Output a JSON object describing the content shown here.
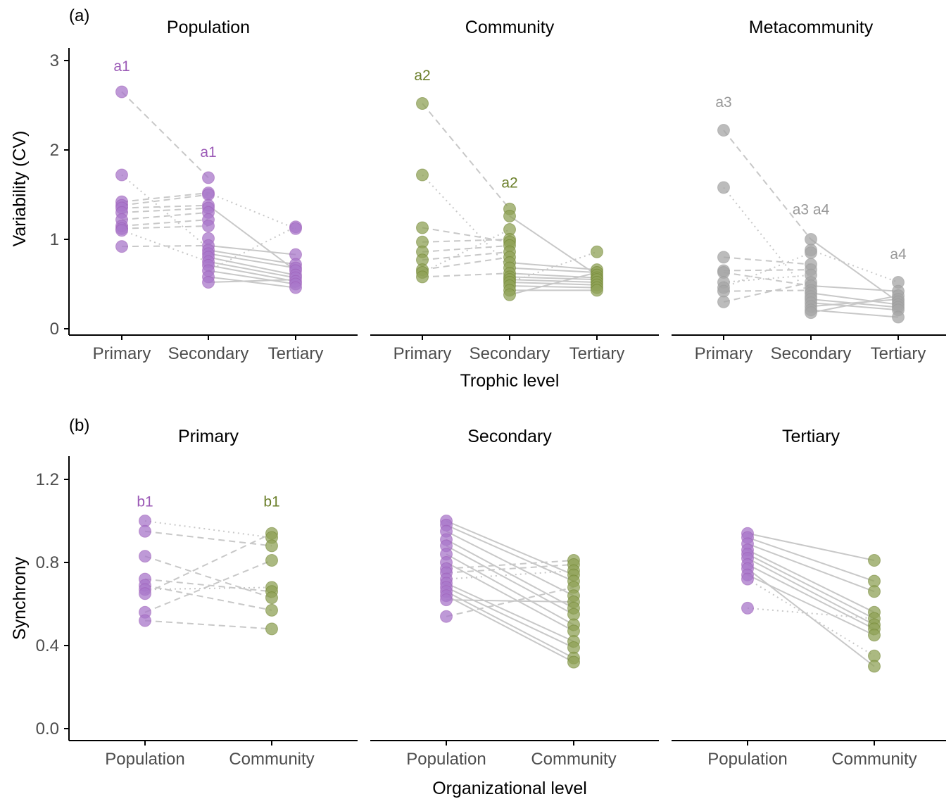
{
  "colors": {
    "population": "#9b59b6",
    "community": "#6b7f2a",
    "metacommunity": "#999999",
    "population_fill": "#a877c9",
    "community_fill": "#8fa157",
    "metacommunity_fill": "#a6a6a6",
    "line": "#c8c8c8",
    "axis": "#000000",
    "tick_text": "#4d4d4d"
  },
  "chart_data": [
    {
      "panel": "(a)",
      "type": "scatter",
      "ylabel": "Variability (CV)",
      "xlabel": "Trophic level",
      "ylim": [
        0,
        3.1
      ],
      "yticks": [
        0,
        1,
        2,
        3
      ],
      "categories": [
        "Primary",
        "Secondary",
        "Tertiary"
      ],
      "facets": [
        {
          "title": "Population",
          "color_key": "population",
          "points": [
            [
              2.65,
              1.72,
              1.42,
              1.38,
              1.35,
              1.3,
              1.22,
              1.15,
              1.12,
              1.1,
              0.92
            ],
            [
              1.69,
              1.52,
              1.5,
              1.38,
              1.35,
              1.3,
              1.22,
              1.15,
              1.01,
              0.93,
              0.88,
              0.84,
              0.8,
              0.75,
              0.71,
              0.65,
              0.58,
              0.52
            ],
            [
              1.14,
              1.12,
              0.83,
              0.72,
              0.68,
              0.65,
              0.6,
              0.57,
              0.53,
              0.5,
              0.46
            ]
          ],
          "lines": [
            [
              0,
              2.65,
              1,
              1.69,
              "dashed"
            ],
            [
              0,
              1.72,
              1,
              0.9,
              "dotted"
            ],
            [
              0,
              1.42,
              1,
              1.52,
              "dashed"
            ],
            [
              0,
              1.38,
              1,
              1.5,
              "dashed"
            ],
            [
              0,
              1.35,
              1,
              1.38,
              "dashed"
            ],
            [
              0,
              1.3,
              1,
              1.35,
              "dashed"
            ],
            [
              0,
              1.22,
              1,
              1.3,
              "dashed"
            ],
            [
              0,
              1.15,
              1,
              1.22,
              "dashed"
            ],
            [
              0,
              1.12,
              1,
              1.15,
              "dashed"
            ],
            [
              0,
              1.1,
              1,
              0.75,
              "dotted"
            ],
            [
              0,
              0.92,
              1,
              0.93,
              "dashed"
            ],
            [
              1,
              1.52,
              2,
              1.12,
              "dotted"
            ],
            [
              1,
              1.38,
              2,
              0.65,
              "solid"
            ],
            [
              1,
              0.93,
              2,
              0.83,
              "solid"
            ],
            [
              1,
              0.88,
              2,
              0.72,
              "solid"
            ],
            [
              1,
              0.84,
              2,
              0.68,
              "solid"
            ],
            [
              1,
              0.8,
              2,
              0.6,
              "solid"
            ],
            [
              1,
              0.75,
              2,
              0.57,
              "solid"
            ],
            [
              1,
              0.71,
              2,
              0.53,
              "solid"
            ],
            [
              1,
              0.65,
              2,
              0.5,
              "solid"
            ],
            [
              1,
              0.58,
              2,
              0.46,
              "solid"
            ],
            [
              1,
              0.52,
              2,
              0.55,
              "solid"
            ],
            [
              1,
              0.65,
              2,
              1.14,
              "dotted"
            ]
          ],
          "annotations": [
            {
              "text": "a1",
              "x": 0,
              "y": 2.88
            },
            {
              "text": "a1",
              "x": 1,
              "y": 1.92
            }
          ]
        },
        {
          "title": "Community",
          "color_key": "community",
          "points": [
            [
              2.52,
              1.72,
              1.13,
              0.97,
              0.86,
              0.77,
              0.66,
              0.63,
              0.58
            ],
            [
              1.34,
              1.26,
              1.11,
              1.0,
              0.97,
              0.93,
              0.86,
              0.8,
              0.74,
              0.68,
              0.62,
              0.58,
              0.55,
              0.52,
              0.48,
              0.43,
              0.38
            ],
            [
              0.86,
              0.66,
              0.63,
              0.6,
              0.57,
              0.55,
              0.52,
              0.49,
              0.46,
              0.43
            ]
          ],
          "lines": [
            [
              0,
              2.52,
              1,
              1.34,
              "dashed"
            ],
            [
              0,
              1.72,
              1,
              0.68,
              "dotted"
            ],
            [
              0,
              1.13,
              1,
              0.97,
              "dashed"
            ],
            [
              0,
              0.97,
              1,
              1.0,
              "dashed"
            ],
            [
              0,
              0.86,
              1,
              0.93,
              "dashed"
            ],
            [
              0,
              0.77,
              1,
              0.86,
              "dashed"
            ],
            [
              0,
              0.66,
              1,
              0.8,
              "dashed"
            ],
            [
              0,
              0.63,
              1,
              1.11,
              "dotted"
            ],
            [
              0,
              0.58,
              1,
              0.62,
              "dashed"
            ],
            [
              1,
              1.26,
              2,
              0.6,
              "solid"
            ],
            [
              1,
              0.74,
              2,
              0.66,
              "solid"
            ],
            [
              1,
              0.68,
              2,
              0.63,
              "solid"
            ],
            [
              1,
              0.62,
              2,
              0.57,
              "solid"
            ],
            [
              1,
              0.58,
              2,
              0.55,
              "solid"
            ],
            [
              1,
              0.55,
              2,
              0.52,
              "solid"
            ],
            [
              1,
              0.52,
              2,
              0.49,
              "solid"
            ],
            [
              1,
              0.48,
              2,
              0.46,
              "solid"
            ],
            [
              1,
              0.43,
              2,
              0.43,
              "solid"
            ],
            [
              1,
              0.38,
              2,
              0.63,
              "solid"
            ],
            [
              1,
              0.52,
              2,
              0.86,
              "dotted"
            ]
          ],
          "annotations": [
            {
              "text": "a2",
              "x": 0,
              "y": 2.78
            },
            {
              "text": "a2",
              "x": 1,
              "y": 1.58
            }
          ]
        },
        {
          "title": "Metacommunity",
          "color_key": "metacommunity",
          "points": [
            [
              2.22,
              1.58,
              0.8,
              0.65,
              0.63,
              0.52,
              0.46,
              0.42,
              0.3
            ],
            [
              1.0,
              0.88,
              0.85,
              0.72,
              0.66,
              0.6,
              0.52,
              0.48,
              0.43,
              0.4,
              0.36,
              0.33,
              0.29,
              0.25,
              0.21,
              0.18
            ],
            [
              0.52,
              0.42,
              0.37,
              0.33,
              0.3,
              0.27,
              0.24,
              0.21,
              0.13
            ]
          ],
          "lines": [
            [
              0,
              2.22,
              1,
              1.0,
              "dashed"
            ],
            [
              0,
              1.58,
              1,
              0.36,
              "dotted"
            ],
            [
              0,
              0.8,
              1,
              0.72,
              "dashed"
            ],
            [
              0,
              0.65,
              1,
              0.66,
              "dashed"
            ],
            [
              0,
              0.63,
              1,
              0.48,
              "dashed"
            ],
            [
              0,
              0.52,
              1,
              0.6,
              "dotted"
            ],
            [
              0,
              0.46,
              1,
              0.85,
              "dotted"
            ],
            [
              0,
              0.42,
              1,
              0.43,
              "dashed"
            ],
            [
              0,
              0.3,
              1,
              0.52,
              "dashed"
            ],
            [
              1,
              1.0,
              2,
              0.3,
              "solid"
            ],
            [
              1,
              0.88,
              2,
              0.52,
              "dotted"
            ],
            [
              1,
              0.4,
              2,
              0.27,
              "solid"
            ],
            [
              1,
              0.33,
              2,
              0.24,
              "solid"
            ],
            [
              1,
              0.29,
              2,
              0.21,
              "solid"
            ],
            [
              1,
              0.25,
              2,
              0.33,
              "solid"
            ],
            [
              1,
              0.21,
              2,
              0.13,
              "solid"
            ],
            [
              1,
              0.18,
              2,
              0.37,
              "solid"
            ],
            [
              1,
              0.48,
              2,
              0.42,
              "solid"
            ]
          ],
          "annotations": [
            {
              "text": "a3",
              "x": 0,
              "y": 2.48
            },
            {
              "text": "a3 a4",
              "x": 1,
              "y": 1.28
            },
            {
              "text": "a4",
              "x": 2,
              "y": 0.78
            }
          ]
        }
      ]
    },
    {
      "panel": "(b)",
      "type": "scatter",
      "ylabel": "Synchrony",
      "xlabel": "Organizational level",
      "ylim": [
        -0.04,
        1.3
      ],
      "yticks": [
        0.0,
        0.4,
        0.8,
        1.2
      ],
      "ytick_labels": [
        "0.0",
        "0.4",
        "0.8",
        "1.2"
      ],
      "categories": [
        "Population",
        "Community"
      ],
      "facets": [
        {
          "title": "Primary",
          "color_keys": [
            "population",
            "community"
          ],
          "points": [
            [
              1.0,
              0.95,
              0.83,
              0.72,
              0.69,
              0.67,
              0.65,
              0.56,
              0.52
            ],
            [
              0.94,
              0.92,
              0.88,
              0.81,
              0.68,
              0.66,
              0.63,
              0.57,
              0.48
            ]
          ],
          "lines": [
            [
              0,
              1.0,
              1,
              0.92,
              "dotted"
            ],
            [
              0,
              0.95,
              1,
              0.88,
              "dashed"
            ],
            [
              0,
              0.83,
              1,
              0.63,
              "dashed"
            ],
            [
              0,
              0.72,
              1,
              0.66,
              "dashed"
            ],
            [
              0,
              0.69,
              1,
              0.57,
              "dashed"
            ],
            [
              0,
              0.67,
              1,
              0.68,
              "dotted"
            ],
            [
              0,
              0.65,
              1,
              0.94,
              "dashed"
            ],
            [
              0,
              0.56,
              1,
              0.81,
              "dashed"
            ],
            [
              0,
              0.52,
              1,
              0.48,
              "dashed"
            ]
          ],
          "annotations": [
            {
              "text": "b1",
              "x": 0,
              "y": 1.07,
              "color_key": "population"
            },
            {
              "text": "b1",
              "x": 1,
              "y": 1.07,
              "color_key": "community"
            }
          ]
        },
        {
          "title": "Secondary",
          "color_keys": [
            "population",
            "community"
          ],
          "points": [
            [
              1.0,
              0.98,
              0.95,
              0.91,
              0.88,
              0.84,
              0.8,
              0.77,
              0.75,
              0.72,
              0.7,
              0.68,
              0.66,
              0.64,
              0.62,
              0.54
            ],
            [
              0.81,
              0.79,
              0.76,
              0.74,
              0.71,
              0.68,
              0.64,
              0.61,
              0.58,
              0.55,
              0.5,
              0.47,
              0.42,
              0.39,
              0.34,
              0.32
            ]
          ],
          "lines": [
            [
              0,
              1.0,
              1,
              0.74,
              "solid"
            ],
            [
              0,
              0.98,
              1,
              0.71,
              "solid"
            ],
            [
              0,
              0.95,
              1,
              0.64,
              "solid"
            ],
            [
              0,
              0.91,
              1,
              0.58,
              "solid"
            ],
            [
              0,
              0.88,
              1,
              0.55,
              "solid"
            ],
            [
              0,
              0.84,
              1,
              0.5,
              "solid"
            ],
            [
              0,
              0.8,
              1,
              0.47,
              "solid"
            ],
            [
              0,
              0.77,
              1,
              0.81,
              "dashed"
            ],
            [
              0,
              0.75,
              1,
              0.79,
              "dashed"
            ],
            [
              0,
              0.72,
              1,
              0.76,
              "dotted"
            ],
            [
              0,
              0.7,
              1,
              0.42,
              "solid"
            ],
            [
              0,
              0.68,
              1,
              0.39,
              "solid"
            ],
            [
              0,
              0.66,
              1,
              0.34,
              "solid"
            ],
            [
              0,
              0.64,
              1,
              0.32,
              "solid"
            ],
            [
              0,
              0.62,
              1,
              0.61,
              "solid"
            ],
            [
              0,
              0.54,
              1,
              0.68,
              "dashed"
            ]
          ],
          "annotations": []
        },
        {
          "title": "Tertiary",
          "color_keys": [
            "population",
            "community"
          ],
          "points": [
            [
              0.94,
              0.92,
              0.89,
              0.86,
              0.84,
              0.82,
              0.79,
              0.77,
              0.74,
              0.72,
              0.58
            ],
            [
              0.81,
              0.71,
              0.66,
              0.56,
              0.53,
              0.5,
              0.48,
              0.45,
              0.35,
              0.3
            ]
          ],
          "lines": [
            [
              0,
              0.94,
              1,
              0.81,
              "solid"
            ],
            [
              0,
              0.92,
              1,
              0.71,
              "solid"
            ],
            [
              0,
              0.89,
              1,
              0.66,
              "solid"
            ],
            [
              0,
              0.86,
              1,
              0.56,
              "solid"
            ],
            [
              0,
              0.84,
              1,
              0.53,
              "solid"
            ],
            [
              0,
              0.82,
              1,
              0.5,
              "solid"
            ],
            [
              0,
              0.79,
              1,
              0.48,
              "solid"
            ],
            [
              0,
              0.77,
              1,
              0.3,
              "solid"
            ],
            [
              0,
              0.74,
              1,
              0.45,
              "solid"
            ],
            [
              0,
              0.72,
              1,
              0.35,
              "dotted"
            ],
            [
              0,
              0.58,
              1,
              0.53,
              "dotted"
            ]
          ],
          "annotations": []
        }
      ]
    }
  ]
}
